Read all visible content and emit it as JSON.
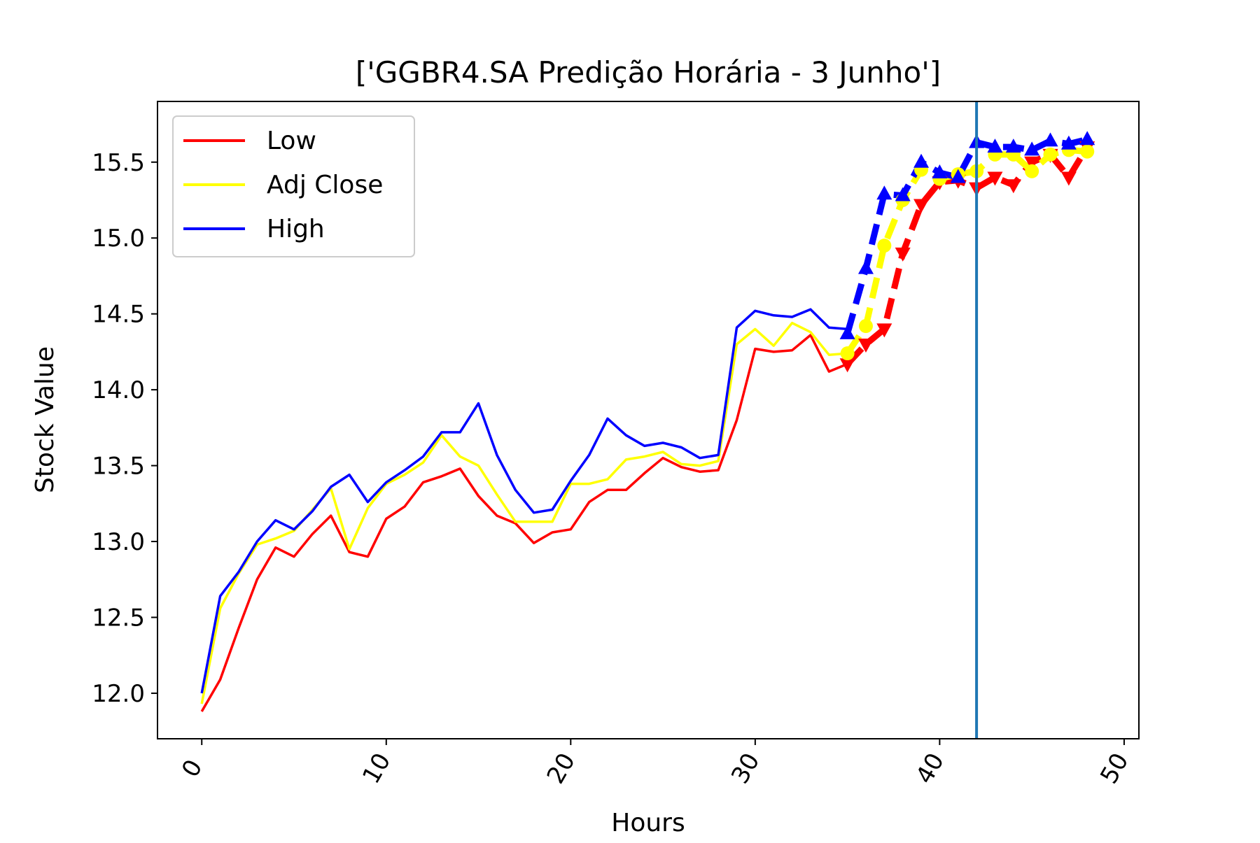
{
  "chart_data": {
    "type": "line",
    "title": "['GGBR4.SA Predição Horária - 3 Junho']",
    "xlabel": "Hours",
    "ylabel": "Stock Value",
    "xlim": [
      -2.4,
      50.8
    ],
    "ylim": [
      11.7,
      15.9
    ],
    "xticks": [
      0,
      10,
      20,
      30,
      40,
      50
    ],
    "xtick_labels": [
      "0",
      "10",
      "20",
      "30",
      "40",
      "50"
    ],
    "yticks": [
      12.0,
      12.5,
      13.0,
      13.5,
      14.0,
      14.5,
      15.0,
      15.5
    ],
    "ytick_labels": [
      "12.0",
      "12.5",
      "13.0",
      "13.5",
      "14.0",
      "14.5",
      "15.0",
      "15.5"
    ],
    "grid": false,
    "legend_position": "top-left",
    "vline": {
      "x": 42,
      "color": "#1f77b4"
    },
    "series": [
      {
        "name": "Low",
        "color": "#ff0000",
        "x": [
          0,
          1,
          2,
          3,
          4,
          5,
          6,
          7,
          8,
          9,
          10,
          11,
          12,
          13,
          14,
          15,
          16,
          17,
          18,
          19,
          20,
          21,
          22,
          23,
          24,
          25,
          26,
          27,
          28,
          29,
          30,
          31,
          32,
          33,
          34,
          35
        ],
        "values": [
          11.88,
          12.09,
          12.43,
          12.75,
          12.96,
          12.9,
          13.05,
          13.17,
          12.93,
          12.9,
          13.15,
          13.23,
          13.39,
          13.43,
          13.48,
          13.3,
          13.17,
          13.12,
          12.99,
          13.06,
          13.08,
          13.26,
          13.34,
          13.34,
          13.45,
          13.55,
          13.49,
          13.46,
          13.47,
          13.8,
          14.27,
          14.25,
          14.26,
          14.36,
          14.12,
          14.17
        ]
      },
      {
        "name": "Adj Close",
        "color": "#ffff00",
        "x": [
          0,
          1,
          2,
          3,
          4,
          5,
          6,
          7,
          8,
          9,
          10,
          11,
          12,
          13,
          14,
          15,
          16,
          17,
          18,
          19,
          20,
          21,
          22,
          23,
          24,
          25,
          26,
          27,
          28,
          29,
          30,
          31,
          32,
          33,
          34,
          35
        ],
        "values": [
          11.93,
          12.56,
          12.79,
          12.98,
          13.02,
          13.07,
          13.21,
          13.35,
          12.95,
          13.22,
          13.38,
          13.44,
          13.52,
          13.7,
          13.56,
          13.5,
          13.31,
          13.13,
          13.13,
          13.13,
          13.38,
          13.38,
          13.41,
          13.54,
          13.56,
          13.59,
          13.51,
          13.5,
          13.53,
          14.3,
          14.4,
          14.29,
          14.44,
          14.38,
          14.23,
          14.24
        ]
      },
      {
        "name": "High",
        "color": "#0000ff",
        "x": [
          0,
          1,
          2,
          3,
          4,
          5,
          6,
          7,
          8,
          9,
          10,
          11,
          12,
          13,
          14,
          15,
          16,
          17,
          18,
          19,
          20,
          21,
          22,
          23,
          24,
          25,
          26,
          27,
          28,
          29,
          30,
          31,
          32,
          33,
          34,
          35
        ],
        "values": [
          12.0,
          12.64,
          12.8,
          13.0,
          13.14,
          13.08,
          13.2,
          13.36,
          13.44,
          13.26,
          13.39,
          13.47,
          13.56,
          13.72,
          13.72,
          13.91,
          13.57,
          13.34,
          13.19,
          13.21,
          13.4,
          13.57,
          13.81,
          13.7,
          13.63,
          13.65,
          13.62,
          13.55,
          13.57,
          14.41,
          14.52,
          14.49,
          14.48,
          14.53,
          14.41,
          14.4
        ]
      }
    ],
    "prediction_series": [
      {
        "name": "Low",
        "color": "#ff0000",
        "marker": "triangle-down",
        "x": [
          35,
          36,
          37,
          38,
          39,
          40,
          41,
          42,
          43,
          44,
          45,
          46,
          47,
          48
        ],
        "values": [
          14.17,
          14.3,
          14.4,
          14.9,
          15.22,
          15.37,
          15.38,
          15.33,
          15.4,
          15.35,
          15.5,
          15.55,
          15.4,
          15.6
        ]
      },
      {
        "name": "Adj Close",
        "color": "#ffff00",
        "marker": "circle",
        "x": [
          35,
          36,
          37,
          38,
          39,
          40,
          41,
          42,
          43,
          44,
          45,
          46,
          47,
          48
        ],
        "values": [
          14.24,
          14.42,
          14.95,
          15.25,
          15.45,
          15.39,
          15.42,
          15.44,
          15.55,
          15.55,
          15.44,
          15.55,
          15.58,
          15.57
        ]
      },
      {
        "name": "High",
        "color": "#0000ff",
        "marker": "triangle-up",
        "x": [
          35,
          36,
          37,
          38,
          39,
          40,
          41,
          42,
          43,
          44,
          45,
          46,
          47,
          48
        ],
        "values": [
          14.37,
          14.8,
          15.29,
          15.28,
          15.5,
          15.43,
          15.4,
          15.63,
          15.6,
          15.6,
          15.58,
          15.64,
          15.62,
          15.65
        ]
      }
    ]
  }
}
